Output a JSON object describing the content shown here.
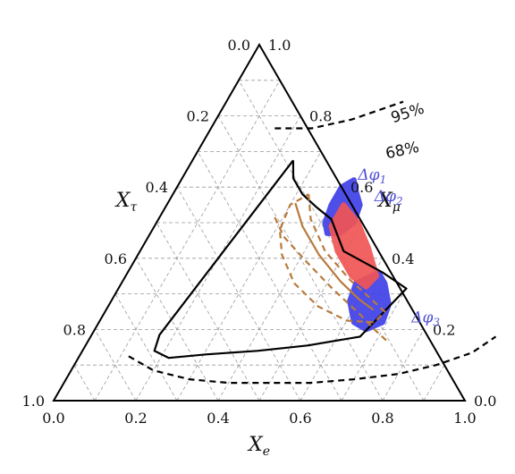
{
  "chart_data": {
    "type": "ternary",
    "axes": {
      "bottom": {
        "label": "X",
        "label_sub": "e",
        "ticks": [
          "0.0",
          "0.2",
          "0.4",
          "0.6",
          "0.8",
          "1.0"
        ]
      },
      "left": {
        "label": "X",
        "label_sub": "τ",
        "ticks": [
          "0.0",
          "0.2",
          "0.4",
          "0.6",
          "0.8",
          "1.0"
        ]
      },
      "right": {
        "label": "X",
        "label_sub": "μ",
        "ticks": [
          "1.0",
          "0.8",
          "0.6",
          "0.4",
          "0.2",
          "0.0"
        ]
      }
    },
    "grid": true,
    "grid_step": 0.1,
    "contour_labels": [
      "95%",
      "68%"
    ],
    "contours": [
      {
        "level": "95%",
        "style": "dashed",
        "color": "#000000",
        "points": [
          [
            0.155,
            0.765
          ],
          [
            0.245,
            0.765
          ],
          [
            0.33,
            0.79
          ],
          [
            0.43,
            0.84
          ]
        ]
      },
      {
        "level": "68%",
        "style": "solid",
        "color": "#000000",
        "points": [
          [
            0.245,
            0.675
          ],
          [
            0.27,
            0.625
          ],
          [
            0.315,
            0.58
          ],
          [
            0.365,
            0.545
          ],
          [
            0.42,
            0.51
          ],
          [
            0.495,
            0.42
          ],
          [
            0.62,
            0.36
          ],
          [
            0.7,
            0.315
          ],
          [
            0.655,
            0.18
          ],
          [
            0.54,
            0.155
          ],
          [
            0.425,
            0.14
          ],
          [
            0.305,
            0.13
          ],
          [
            0.22,
            0.12
          ],
          [
            0.175,
            0.14
          ],
          [
            0.165,
            0.185
          ],
          [
            0.245,
            0.675
          ]
        ]
      },
      {
        "level": "95%",
        "style": "dashed",
        "color": "#000000",
        "points": [
          [
            0.12,
            0.125
          ],
          [
            0.2,
            0.085
          ],
          [
            0.3,
            0.06
          ],
          [
            0.4,
            0.05
          ],
          [
            0.5,
            0.05
          ],
          [
            0.6,
            0.05
          ],
          [
            0.7,
            0.06
          ],
          [
            0.8,
            0.075
          ],
          [
            0.88,
            0.1
          ],
          [
            0.95,
            0.135
          ],
          [
            0.985,
            0.18
          ]
        ]
      },
      {
        "level": "95%",
        "style": "dashed",
        "color": "#b87a3c",
        "points": [
          [
            0.28,
            0.515
          ],
          [
            0.33,
            0.46
          ],
          [
            0.42,
            0.39
          ],
          [
            0.52,
            0.315
          ],
          [
            0.62,
            0.245
          ],
          [
            0.68,
            0.2
          ],
          [
            0.73,
            0.165
          ]
        ]
      },
      {
        "level": "95%",
        "style": "dashed",
        "color": "#b87a3c",
        "points": [
          [
            0.33,
            0.58
          ],
          [
            0.37,
            0.51
          ],
          [
            0.45,
            0.42
          ],
          [
            0.55,
            0.34
          ],
          [
            0.63,
            0.285
          ],
          [
            0.68,
            0.25
          ],
          [
            0.67,
            0.22
          ],
          [
            0.6,
            0.225
          ],
          [
            0.51,
            0.265
          ],
          [
            0.42,
            0.33
          ],
          [
            0.35,
            0.41
          ],
          [
            0.31,
            0.48
          ],
          [
            0.3,
            0.55
          ],
          [
            0.33,
            0.58
          ]
        ]
      },
      {
        "level": "68%",
        "style": "solid",
        "color": "#b87a3c",
        "points": [
          [
            0.31,
            0.555
          ],
          [
            0.36,
            0.49
          ],
          [
            0.44,
            0.41
          ],
          [
            0.53,
            0.335
          ],
          [
            0.6,
            0.285
          ],
          [
            0.65,
            0.255
          ]
        ]
      }
    ],
    "regions": [
      {
        "name": "Δφ",
        "sub": "1",
        "color": "#4040e8",
        "points": [
          [
            0.42,
            0.62
          ],
          [
            0.44,
            0.59
          ],
          [
            0.47,
            0.55
          ],
          [
            0.48,
            0.5
          ],
          [
            0.46,
            0.47
          ],
          [
            0.43,
            0.47
          ],
          [
            0.41,
            0.5
          ],
          [
            0.4,
            0.55
          ],
          [
            0.4,
            0.6
          ]
        ]
      },
      {
        "name": "Δφ",
        "sub": "3",
        "color": "#4040e8",
        "points": [
          [
            0.61,
            0.36
          ],
          [
            0.64,
            0.33
          ],
          [
            0.68,
            0.27
          ],
          [
            0.69,
            0.22
          ],
          [
            0.66,
            0.2
          ],
          [
            0.62,
            0.22
          ],
          [
            0.58,
            0.28
          ],
          [
            0.57,
            0.33
          ]
        ]
      },
      {
        "name": "Δφ",
        "sub": "2",
        "color": "#f05555",
        "points": [
          [
            0.43,
            0.55
          ],
          [
            0.49,
            0.5
          ],
          [
            0.55,
            0.43
          ],
          [
            0.61,
            0.35
          ],
          [
            0.6,
            0.32
          ],
          [
            0.55,
            0.35
          ],
          [
            0.48,
            0.42
          ],
          [
            0.43,
            0.49
          ]
        ]
      }
    ],
    "region_labels": [
      {
        "name": "Δφ",
        "sub": "1",
        "anchor": [
          0.43,
          0.62
        ]
      },
      {
        "name": "Δφ",
        "sub": "2",
        "anchor": [
          0.5,
          0.56
        ]
      },
      {
        "name": "Δφ",
        "sub": "3",
        "anchor": [
          0.76,
          0.22
        ]
      }
    ]
  }
}
